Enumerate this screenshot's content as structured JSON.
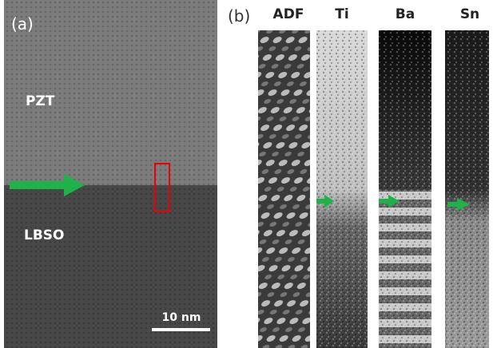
{
  "panel_a": {
    "label": "(a)",
    "top_layer": "PZT",
    "bottom_layer": "LBSO",
    "scale_bar": "10 nm"
  },
  "panel_b": {
    "label": "(b)",
    "columns": [
      "ADF",
      "Ti",
      "Ba",
      "Sn"
    ]
  }
}
